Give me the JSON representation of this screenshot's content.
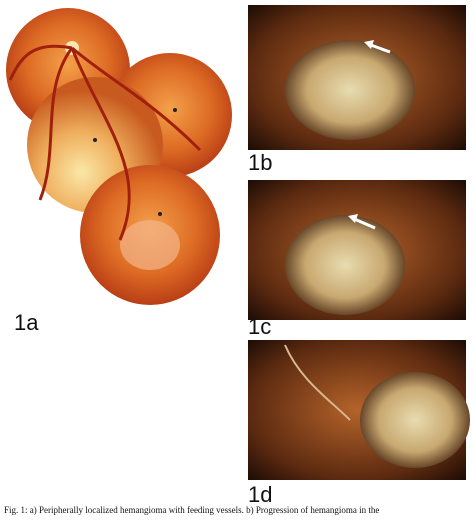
{
  "figure": {
    "panels": [
      {
        "label": "1a"
      },
      {
        "label": "1b"
      },
      {
        "label": "1c"
      },
      {
        "label": "1d"
      }
    ],
    "caption": "Fig. 1: a) Peripherally localized hemangioma with feeding vessels. b) Progression of hemangioma in the"
  }
}
